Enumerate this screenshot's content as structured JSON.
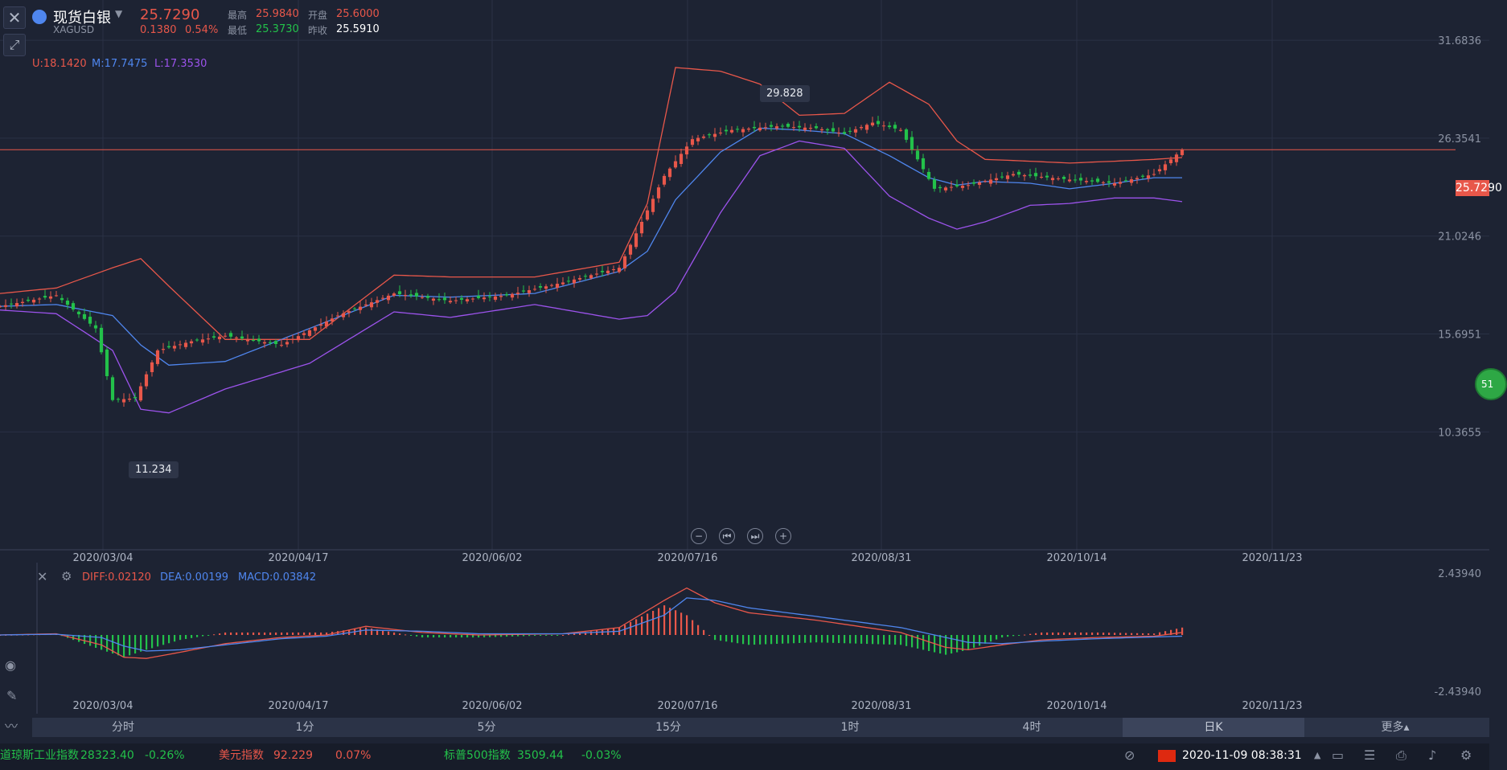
{
  "instrument": {
    "name": "现货白银",
    "symbol": "XAGUSD",
    "last": "25.7290",
    "change": "0.1380",
    "change_pct": "0.54%",
    "high_label": "最高",
    "high": "25.9840",
    "open_label": "开盘",
    "open": "25.6000",
    "low_label": "最低",
    "low": "25.3730",
    "prev_label": "昨收",
    "prev": "25.5910"
  },
  "boll_legend": {
    "u": "U:18.1420",
    "m": "M:17.7475",
    "l": "L:17.3530"
  },
  "macd_legend": {
    "diff": "DIFF:0.02120",
    "dea": "DEA:0.00199",
    "macd": "MACD:0.03842"
  },
  "price_badge": "25.7290",
  "side_badge": "51",
  "callouts": {
    "high": "29.828",
    "low": "11.234"
  },
  "nav": {
    "zoom_out": "−",
    "prev": "⏮",
    "next": "⏭",
    "zoom_in": "+"
  },
  "timeframes": [
    "分时",
    "1分",
    "5分",
    "15分",
    "1时",
    "4时",
    "日K",
    "更多▴"
  ],
  "active_timeframe": "日K",
  "ticker": [
    {
      "name": "道琼斯工业指数",
      "value": "28323.40",
      "change": "-0.26%",
      "dir": "green"
    },
    {
      "name": "美元指数",
      "value": "92.229",
      "change": "0.07%",
      "dir": "red"
    },
    {
      "name": "标普500指数",
      "value": "3509.44",
      "change": "-0.03%",
      "dir": "green"
    }
  ],
  "datetime": "2020-11-09 08:38:31",
  "icons": {
    "close": "close-icon",
    "tool": "drawing-tool-icon",
    "settings": "gear-icon"
  },
  "colors": {
    "up": "#e8574a",
    "down": "#23c14a",
    "mid": "#4f86ee",
    "lower": "#9c53ec",
    "upper": "#e8574a",
    "bg": "#1d2333"
  },
  "chart_data": [
    {
      "type": "candlestick",
      "title": "现货白银 XAGUSD 日K",
      "x_labels": [
        "2020/03/04",
        "2020/04/17",
        "2020/06/02",
        "2020/07/16",
        "2020/08/31",
        "2020/10/14",
        "2020/11/23"
      ],
      "y_ticks": [
        "31.6836",
        "26.3541",
        "21.0246",
        "15.6951",
        "10.3655"
      ],
      "ylim": [
        5.0,
        33.0
      ],
      "current_price": 25.729,
      "annotations": [
        {
          "label": "29.828",
          "value": 29.828
        },
        {
          "label": "11.234",
          "value": 11.234
        }
      ],
      "bollinger_anchors": {
        "index": [
          0,
          10,
          20,
          25,
          30,
          40,
          55,
          70,
          80,
          95,
          110,
          115,
          120,
          128,
          135,
          142,
          150,
          158,
          165,
          170,
          175,
          183,
          190,
          198,
          205,
          210
        ],
        "upper": [
          17.9,
          18.2,
          19.3,
          19.8,
          18.3,
          15.4,
          15.4,
          18.9,
          18.8,
          18.8,
          19.6,
          22.8,
          30.2,
          30.0,
          29.3,
          27.6,
          27.7,
          29.4,
          28.2,
          26.2,
          25.2,
          25.1,
          25.0,
          25.1,
          25.2,
          25.3
        ],
        "mid": [
          17.2,
          17.3,
          16.7,
          15.1,
          14.0,
          14.2,
          16.0,
          17.8,
          17.7,
          17.9,
          19.1,
          20.2,
          23.0,
          25.6,
          26.9,
          26.8,
          26.6,
          25.4,
          24.2,
          23.8,
          24.0,
          23.9,
          23.6,
          23.9,
          24.2,
          24.2
        ],
        "lower": [
          17.0,
          16.8,
          14.8,
          11.6,
          11.4,
          12.7,
          14.1,
          16.9,
          16.6,
          17.3,
          16.5,
          16.7,
          18.0,
          22.3,
          25.4,
          26.2,
          25.8,
          23.2,
          22.0,
          21.4,
          21.8,
          22.7,
          22.8,
          23.1,
          23.1,
          22.9
        ]
      },
      "price_anchors": {
        "index": [
          0,
          10,
          17,
          20,
          24,
          28,
          34,
          40,
          50,
          60,
          70,
          80,
          90,
          100,
          110,
          118,
          123,
          130,
          138,
          145,
          150,
          155,
          160,
          166,
          172,
          180,
          190,
          198,
          205,
          210
        ],
        "close": [
          17.2,
          17.8,
          16.0,
          12.1,
          12.2,
          14.8,
          15.3,
          15.6,
          15.1,
          16.7,
          17.9,
          17.5,
          17.8,
          18.5,
          19.3,
          24.3,
          26.3,
          26.8,
          27.0,
          26.9,
          26.6,
          27.2,
          26.8,
          23.6,
          23.8,
          24.4,
          24.1,
          23.9,
          24.4,
          25.73
        ]
      },
      "macd": {
        "ylim_labels": [
          "2.43940",
          "-2.43940"
        ],
        "ylim": [
          -2.4394,
          2.4394
        ],
        "anchors_index": [
          0,
          10,
          18,
          22,
          26,
          32,
          40,
          50,
          58,
          65,
          75,
          85,
          100,
          110,
          118,
          122,
          127,
          133,
          145,
          160,
          168,
          172,
          178,
          185,
          195,
          205,
          210
        ],
        "diff": [
          0.0,
          0.05,
          -0.4,
          -0.9,
          -0.95,
          -0.7,
          -0.35,
          -0.1,
          0.0,
          0.35,
          0.1,
          0.0,
          0.05,
          0.3,
          1.4,
          1.9,
          1.3,
          0.9,
          0.6,
          0.1,
          -0.5,
          -0.6,
          -0.4,
          -0.2,
          -0.1,
          -0.05,
          0.1
        ],
        "dea": [
          0.0,
          0.03,
          -0.1,
          -0.45,
          -0.65,
          -0.6,
          -0.4,
          -0.15,
          -0.05,
          0.2,
          0.15,
          0.05,
          0.05,
          0.15,
          0.8,
          1.5,
          1.4,
          1.1,
          0.75,
          0.3,
          -0.1,
          -0.3,
          -0.35,
          -0.25,
          -0.15,
          -0.08,
          -0.05
        ]
      }
    }
  ]
}
